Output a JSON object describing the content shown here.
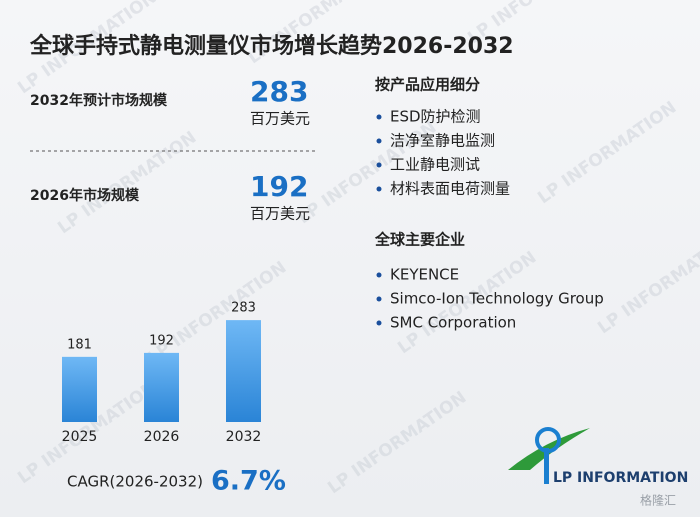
{
  "title": "全球手持式静电测量仪市场增长趋势2026-2032",
  "stats": [
    {
      "label": "2032年预计市场规模",
      "value": 283,
      "unit": "百万美元"
    },
    {
      "label": "2026年市场规模",
      "value": 192,
      "unit": "百万美元"
    }
  ],
  "chart_data": {
    "type": "bar",
    "categories": [
      "2025",
      "2026",
      "2032"
    ],
    "values": [
      181,
      192,
      283
    ],
    "color": "#2a84d6"
  },
  "cagr": {
    "label": "CAGR(2026-2032)",
    "value": "6.7%"
  },
  "segments": {
    "title": "按产品应用细分",
    "items": [
      "ESD防护检测",
      "洁净室静电监测",
      "工业静电测试",
      "材料表面电荷测量"
    ]
  },
  "companies": {
    "title": "全球主要企业",
    "items": [
      "KEYENCE",
      "Simco-Ion Technology Group",
      "SMC Corporation"
    ]
  },
  "logo": {
    "text": "LP INFORMATION"
  },
  "watermark": "格隆汇"
}
